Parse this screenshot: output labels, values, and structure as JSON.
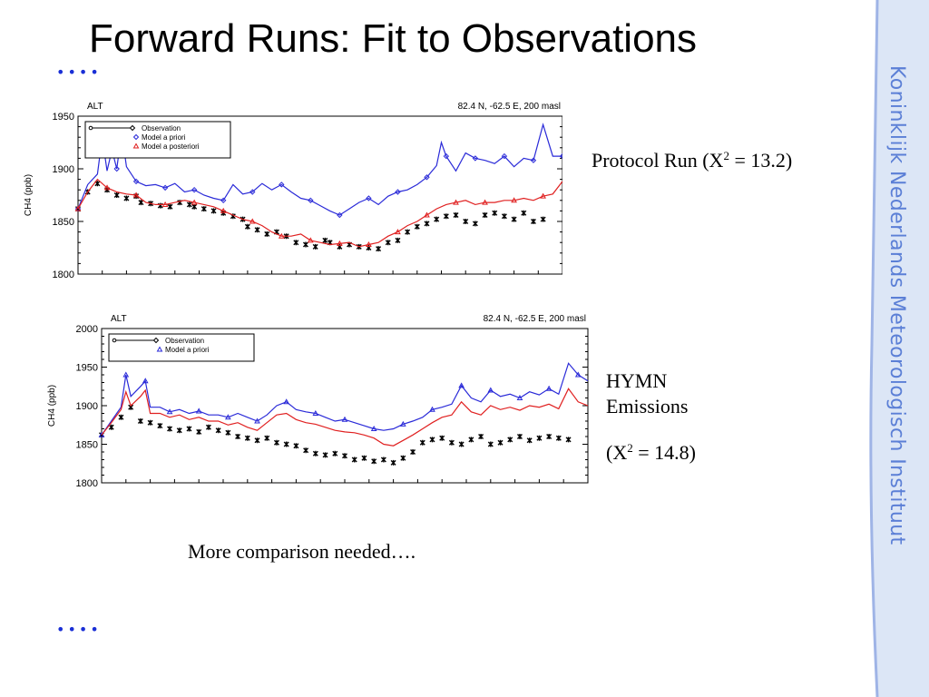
{
  "slide": {
    "title": "Forward Runs: Fit to Observations",
    "bullet_top": "••••",
    "bullet_bottom": "••••",
    "caption_protocol": "Protocol Run (X",
    "caption_protocol_sup": "2",
    "caption_protocol_tail": " = 13.2)",
    "caption_hymn": "HYMN Emissions",
    "caption_hymn_value": "(X",
    "caption_hymn_sup": "2",
    "caption_hymn_tail": " = 14.8)",
    "footer_note": "More comparison needed….",
    "institute": "Koninklijk Nederlands Meteorologisch Instituut",
    "colors": {
      "bullet": "#1a2fd6",
      "sidebar_text": "#5b7fd6",
      "sidebar_band": "#dce6f6",
      "observation": "#000000",
      "model_a_priori": "#2a2ad8",
      "model_a_posteriori": "#e02020"
    }
  },
  "chart_data": [
    {
      "type": "line",
      "station": "ALT",
      "location": "82.4 N,   -62.5 E,   200 masl",
      "ylabel": "CH4  (ppb)",
      "ylim": [
        1800,
        1950
      ],
      "yticks": [
        1800,
        1850,
        1900,
        1950
      ],
      "legend": [
        "Observation",
        "Model a priori",
        "Model a posteriori"
      ],
      "legend_placement": "top-left",
      "series": [
        {
          "name": "Observation",
          "marker": "asterisk",
          "color": "#000000",
          "x": [
            0,
            2,
            4,
            6,
            8,
            10,
            12,
            13,
            15,
            17,
            19,
            21,
            23,
            24,
            26,
            28,
            30,
            32,
            34,
            35,
            37,
            39,
            41,
            43,
            45,
            47,
            49,
            51,
            52,
            54,
            56,
            58,
            60,
            62,
            64,
            66,
            68,
            70,
            72,
            74,
            76,
            78,
            80,
            82,
            84,
            86,
            88,
            90,
            92,
            94,
            96
          ],
          "values": [
            1862,
            1878,
            1886,
            1880,
            1875,
            1872,
            1874,
            1868,
            1867,
            1865,
            1864,
            1868,
            1866,
            1864,
            1862,
            1860,
            1858,
            1855,
            1852,
            1845,
            1842,
            1838,
            1840,
            1836,
            1830,
            1828,
            1826,
            1832,
            1830,
            1826,
            1828,
            1826,
            1825,
            1824,
            1830,
            1832,
            1840,
            1845,
            1848,
            1852,
            1855,
            1856,
            1850,
            1848,
            1856,
            1858,
            1855,
            1852,
            1858,
            1850,
            1852
          ]
        },
        {
          "name": "Model a priori",
          "marker": "diamond",
          "color": "#2a2ad8",
          "x": [
            0,
            2,
            4,
            5,
            6,
            7,
            8,
            9,
            10,
            12,
            14,
            16,
            18,
            20,
            22,
            24,
            26,
            28,
            30,
            32,
            34,
            36,
            38,
            40,
            42,
            44,
            46,
            48,
            50,
            52,
            54,
            56,
            58,
            60,
            62,
            64,
            66,
            68,
            70,
            72,
            74,
            75,
            76,
            78,
            80,
            82,
            84,
            86,
            88,
            90,
            92,
            94,
            96,
            98,
            100
          ],
          "values": [
            1862,
            1885,
            1895,
            1930,
            1898,
            1918,
            1900,
            1935,
            1902,
            1888,
            1884,
            1885,
            1882,
            1886,
            1878,
            1880,
            1875,
            1872,
            1870,
            1885,
            1876,
            1878,
            1886,
            1880,
            1885,
            1878,
            1872,
            1870,
            1865,
            1860,
            1856,
            1862,
            1868,
            1872,
            1866,
            1874,
            1878,
            1880,
            1885,
            1892,
            1903,
            1925,
            1912,
            1898,
            1915,
            1910,
            1908,
            1905,
            1912,
            1902,
            1910,
            1908,
            1942,
            1912,
            1912
          ]
        },
        {
          "name": "Model a posteriori",
          "marker": "triangle",
          "color": "#e02020",
          "x": [
            0,
            2,
            4,
            6,
            8,
            10,
            12,
            14,
            16,
            18,
            20,
            22,
            24,
            26,
            28,
            30,
            32,
            34,
            36,
            38,
            40,
            42,
            44,
            46,
            48,
            50,
            52,
            54,
            56,
            58,
            60,
            62,
            64,
            66,
            68,
            70,
            72,
            74,
            76,
            78,
            80,
            82,
            84,
            86,
            88,
            90,
            92,
            94,
            96,
            98,
            100
          ],
          "values": [
            1862,
            1878,
            1890,
            1882,
            1878,
            1876,
            1875,
            1868,
            1866,
            1866,
            1868,
            1870,
            1868,
            1866,
            1864,
            1860,
            1856,
            1852,
            1850,
            1846,
            1840,
            1836,
            1836,
            1838,
            1832,
            1830,
            1828,
            1829,
            1830,
            1826,
            1828,
            1830,
            1836,
            1840,
            1846,
            1850,
            1856,
            1862,
            1866,
            1868,
            1870,
            1866,
            1868,
            1868,
            1870,
            1870,
            1872,
            1870,
            1874,
            1876,
            1888
          ]
        }
      ]
    },
    {
      "type": "line",
      "station": "ALT",
      "location": "82.4 N,   -62.5 E,   200 masl",
      "ylabel": "CH4  (ppb)",
      "ylim": [
        1800,
        2000
      ],
      "yticks": [
        1800,
        1850,
        1900,
        1950,
        2000
      ],
      "legend": [
        "Observation",
        "Model a priori"
      ],
      "legend_placement": "top-left",
      "series": [
        {
          "name": "Observation",
          "marker": "asterisk",
          "color": "#000000",
          "x": [
            0,
            2,
            4,
            6,
            8,
            10,
            12,
            14,
            16,
            18,
            20,
            22,
            24,
            26,
            28,
            30,
            32,
            34,
            36,
            38,
            40,
            42,
            44,
            46,
            48,
            50,
            52,
            54,
            56,
            58,
            60,
            62,
            64,
            66,
            68,
            70,
            72,
            74,
            76,
            78,
            80,
            82,
            84,
            86,
            88,
            90,
            92,
            94,
            96
          ],
          "values": [
            1862,
            1872,
            1885,
            1898,
            1880,
            1878,
            1874,
            1870,
            1868,
            1870,
            1866,
            1872,
            1868,
            1865,
            1860,
            1858,
            1855,
            1858,
            1852,
            1850,
            1848,
            1842,
            1838,
            1836,
            1838,
            1835,
            1830,
            1832,
            1828,
            1830,
            1826,
            1832,
            1840,
            1852,
            1856,
            1858,
            1852,
            1850,
            1856,
            1860,
            1850,
            1852,
            1856,
            1860,
            1855,
            1858,
            1860,
            1858,
            1856
          ]
        },
        {
          "name": "Model a priori",
          "marker": "triangle",
          "color": "#2a2ad8",
          "x": [
            0,
            2,
            4,
            5,
            6,
            8,
            9,
            10,
            12,
            14,
            16,
            18,
            20,
            22,
            24,
            26,
            28,
            30,
            32,
            34,
            36,
            38,
            40,
            42,
            44,
            46,
            48,
            50,
            52,
            54,
            56,
            58,
            60,
            62,
            64,
            66,
            68,
            70,
            72,
            74,
            76,
            78,
            80,
            82,
            84,
            86,
            88,
            90,
            92,
            94,
            96,
            98,
            100
          ],
          "values": [
            1862,
            1880,
            1898,
            1940,
            1912,
            1925,
            1932,
            1898,
            1898,
            1892,
            1895,
            1890,
            1893,
            1888,
            1888,
            1885,
            1890,
            1885,
            1880,
            1888,
            1900,
            1905,
            1895,
            1892,
            1890,
            1885,
            1880,
            1882,
            1878,
            1874,
            1870,
            1868,
            1870,
            1876,
            1880,
            1885,
            1895,
            1898,
            1902,
            1926,
            1910,
            1905,
            1920,
            1912,
            1915,
            1910,
            1918,
            1914,
            1922,
            1915,
            1955,
            1940,
            1932
          ]
        },
        {
          "name": "",
          "marker": "none",
          "color": "#e02020",
          "x": [
            0,
            2,
            4,
            5,
            6,
            8,
            9,
            10,
            12,
            14,
            16,
            18,
            20,
            22,
            24,
            26,
            28,
            30,
            32,
            34,
            36,
            38,
            40,
            42,
            44,
            46,
            48,
            50,
            52,
            54,
            56,
            58,
            60,
            62,
            64,
            66,
            68,
            70,
            72,
            74,
            76,
            78,
            80,
            82,
            84,
            86,
            88,
            90,
            92,
            94,
            96,
            98,
            100
          ],
          "values": [
            1862,
            1878,
            1895,
            1918,
            1900,
            1912,
            1920,
            1890,
            1890,
            1885,
            1888,
            1882,
            1885,
            1880,
            1880,
            1875,
            1878,
            1872,
            1868,
            1878,
            1888,
            1890,
            1882,
            1878,
            1876,
            1872,
            1868,
            1866,
            1865,
            1862,
            1858,
            1850,
            1848,
            1855,
            1862,
            1870,
            1878,
            1885,
            1888,
            1905,
            1892,
            1888,
            1900,
            1895,
            1898,
            1894,
            1900,
            1898,
            1902,
            1896,
            1922,
            1905,
            1900
          ]
        }
      ]
    }
  ]
}
